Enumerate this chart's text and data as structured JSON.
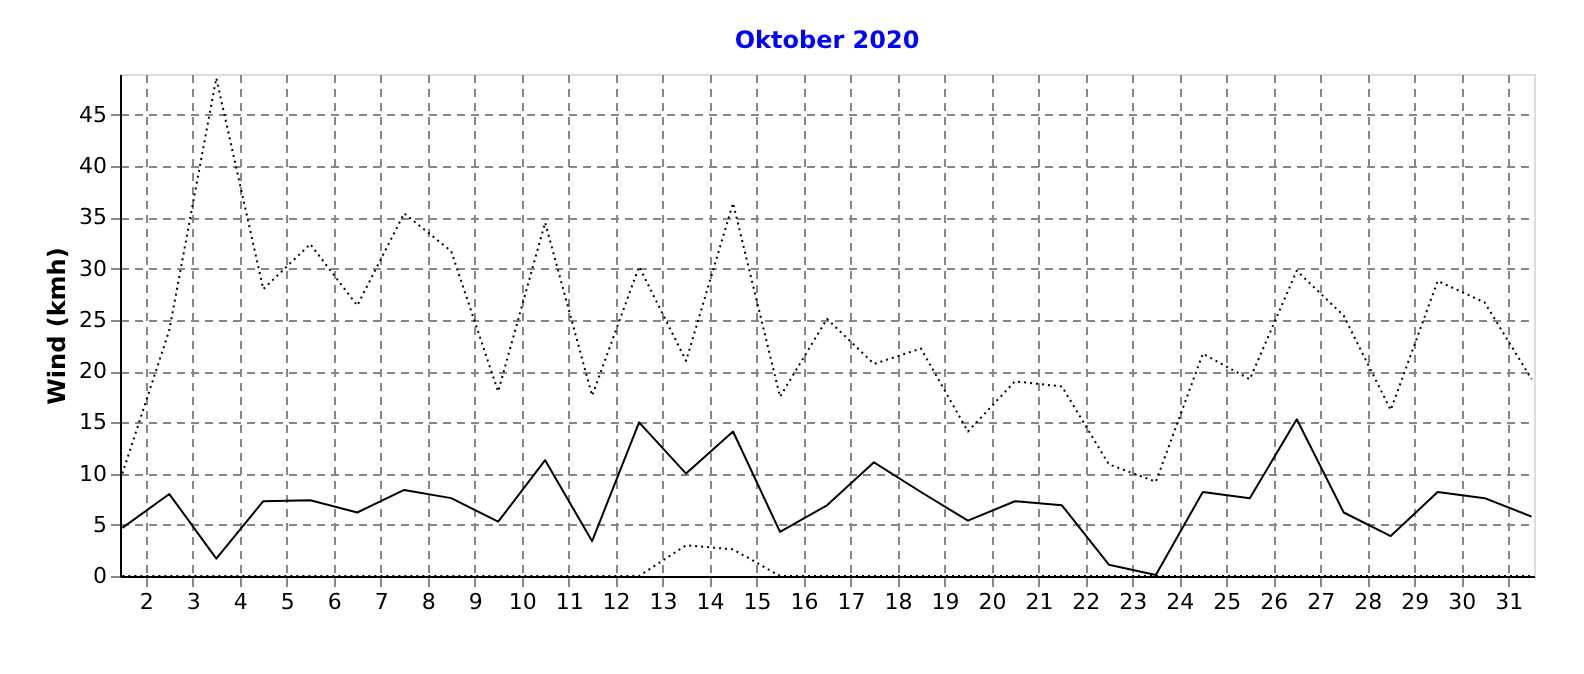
{
  "chart_data": {
    "type": "line",
    "title": "Oktober 2020",
    "ylabel": "Wind  (kmh)",
    "x": [
      1.5,
      2.5,
      3.5,
      4.5,
      5.5,
      6.5,
      7.5,
      8.5,
      9.5,
      10.5,
      11.5,
      12.5,
      13.5,
      14.5,
      15.5,
      16.5,
      17.5,
      18.5,
      19.5,
      20.5,
      21.5,
      22.5,
      23.5,
      24.5,
      25.5,
      26.5,
      27.5,
      28.5,
      29.5,
      30.5,
      31.5
    ],
    "series": [
      {
        "color": "#000000",
        "line_style": "dotted",
        "values": [
          10.0,
          24.0,
          48.6,
          28.0,
          32.4,
          26.4,
          35.4,
          31.7,
          18.0,
          34.5,
          17.6,
          30.2,
          21.0,
          36.4,
          17.5,
          25.1,
          20.7,
          22.2,
          14.1,
          19.0,
          18.5,
          10.9,
          9.2,
          21.7,
          19.2,
          29.8,
          25.4,
          16.2,
          28.8,
          26.7,
          19.2
        ]
      },
      {
        "color": "#000000",
        "line_style": "solid",
        "values": [
          4.7,
          8.0,
          1.7,
          7.3,
          7.4,
          6.2,
          8.4,
          7.6,
          5.3,
          11.3,
          3.4,
          15.0,
          10.0,
          14.1,
          4.3,
          6.9,
          11.1,
          8.2,
          5.4,
          7.3,
          6.9,
          1.1,
          0.1,
          8.2,
          7.6,
          15.3,
          6.2,
          3.9,
          8.2,
          7.6,
          5.8
        ]
      },
      {
        "color": "#000000",
        "line_style": "dotted",
        "values": [
          0,
          0,
          0,
          0,
          0,
          0,
          0,
          0,
          0,
          0,
          0,
          0,
          3.0,
          2.6,
          0,
          0,
          0,
          0,
          0,
          0,
          0,
          0,
          0,
          0,
          0,
          0,
          0,
          0,
          0,
          0,
          0
        ]
      }
    ],
    "xlim": [
      1.45,
      31.55
    ],
    "xticks": [
      2,
      3,
      4,
      5,
      6,
      7,
      8,
      9,
      10,
      11,
      12,
      13,
      14,
      15,
      16,
      17,
      18,
      19,
      20,
      21,
      22,
      23,
      24,
      25,
      26,
      27,
      28,
      29,
      30,
      31
    ],
    "ylim": [
      0,
      49
    ],
    "yticks": [
      0,
      5,
      10,
      15,
      20,
      25,
      30,
      35,
      40,
      45
    ],
    "grid": true,
    "marker": "none"
  }
}
